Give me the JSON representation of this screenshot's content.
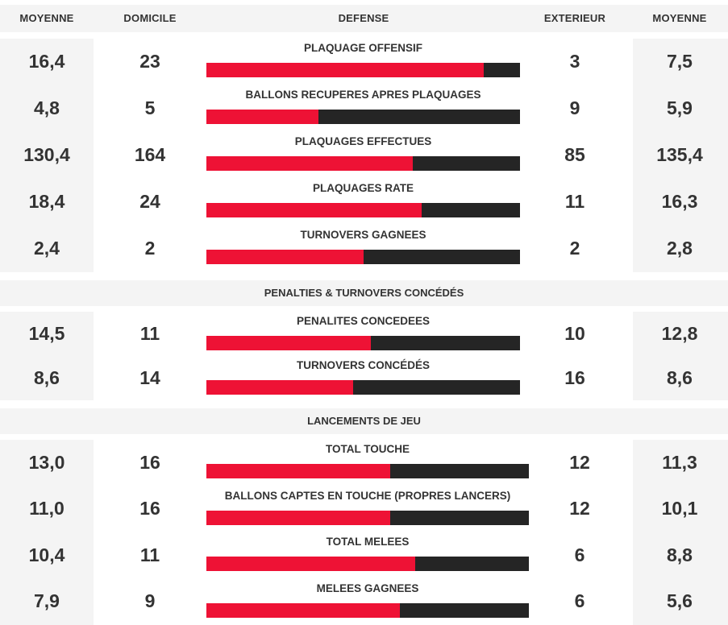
{
  "header": {
    "moyenne_left": "MOYENNE",
    "domicile": "DOMICILE",
    "defense": "DEFENSE",
    "exterieur": "EXTERIEUR",
    "moyenne_right": "MOYENNE"
  },
  "colors": {
    "home_bar": "#ee1235",
    "away_bar": "#252525",
    "panel_bg": "#f4f4f4"
  },
  "sections": [
    {
      "title": "",
      "rows": [
        {
          "label": "PLAQUAGE OFFENSIF",
          "moy_home": "16,4",
          "home": "23",
          "away": "3",
          "moy_away": "7,5",
          "home_share": 0.885
        },
        {
          "label": "BALLONS RECUPERES APRES PLAQUAGES",
          "moy_home": "4,8",
          "home": "5",
          "away": "9",
          "moy_away": "5,9",
          "home_share": 0.357
        },
        {
          "label": "PLAQUAGES EFFECTUES",
          "moy_home": "130,4",
          "home": "164",
          "away": "85",
          "moy_away": "135,4",
          "home_share": 0.659
        },
        {
          "label": "PLAQUAGES RATE",
          "moy_home": "18,4",
          "home": "24",
          "away": "11",
          "moy_away": "16,3",
          "home_share": 0.686
        },
        {
          "label": "TURNOVERS GAGNEES",
          "moy_home": "2,4",
          "home": "2",
          "away": "2",
          "moy_away": "2,8",
          "home_share": 0.5
        }
      ]
    },
    {
      "title": "PENALTIES & TURNOVERS CONCÉDÉS",
      "rows": [
        {
          "label": "PENALITES CONCEDEES",
          "moy_home": "14,5",
          "home": "11",
          "away": "10",
          "moy_away": "12,8",
          "home_share": 0.524
        },
        {
          "label": "TURNOVERS CONCÉDÉS",
          "moy_home": "8,6",
          "home": "14",
          "away": "16",
          "moy_away": "8,6",
          "home_share": 0.467
        }
      ]
    },
    {
      "title": "LANCEMENTS DE JEU",
      "rows": [
        {
          "label": "TOTAL TOUCHE",
          "moy_home": "13,0",
          "home": "16",
          "away": "12",
          "moy_away": "11,3",
          "home_share": 0.571
        },
        {
          "label": "BALLONS CAPTES EN TOUCHE (PROPRES LANCERS)",
          "moy_home": "11,0",
          "home": "16",
          "away": "12",
          "moy_away": "10,1",
          "home_share": 0.571
        },
        {
          "label": "TOTAL MELEES",
          "moy_home": "10,4",
          "home": "11",
          "away": "6",
          "moy_away": "8,8",
          "home_share": 0.647
        },
        {
          "label": "MELEES GAGNEES",
          "moy_home": "7,9",
          "home": "9",
          "away": "6",
          "moy_away": "5,6",
          "home_share": 0.6
        }
      ]
    }
  ]
}
